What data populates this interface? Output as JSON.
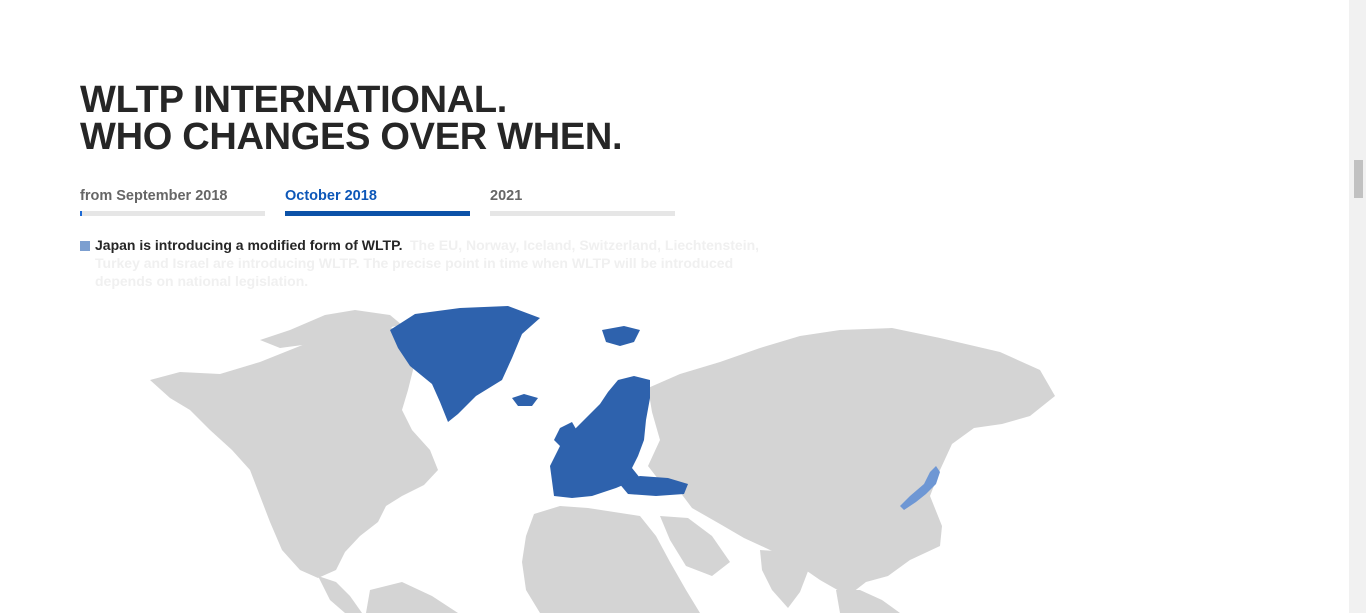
{
  "headline": {
    "line1": "WLTP INTERNATIONAL.",
    "line2": "WHO CHANGES OVER WHEN."
  },
  "tabs": [
    {
      "label": "from September 2018",
      "progress": 0.01,
      "active": false
    },
    {
      "label": "October 2018",
      "progress": 1.0,
      "active": true
    },
    {
      "label": "2021",
      "progress": 0,
      "active": false
    }
  ],
  "info": {
    "main": "Japan is introducing a modified form of WLTP.",
    "faded": "The EU, Norway, Iceland, Switzerland, Liechtenstein, Turkey and Israel are introducing WLTP. The precise point in time when WLTP will be introduced depends on national legislation."
  },
  "colors": {
    "highlight": "#2e62ad",
    "japan": "#6e97d4",
    "land": "#d4d4d4",
    "bullet": "#7c9fd0"
  }
}
